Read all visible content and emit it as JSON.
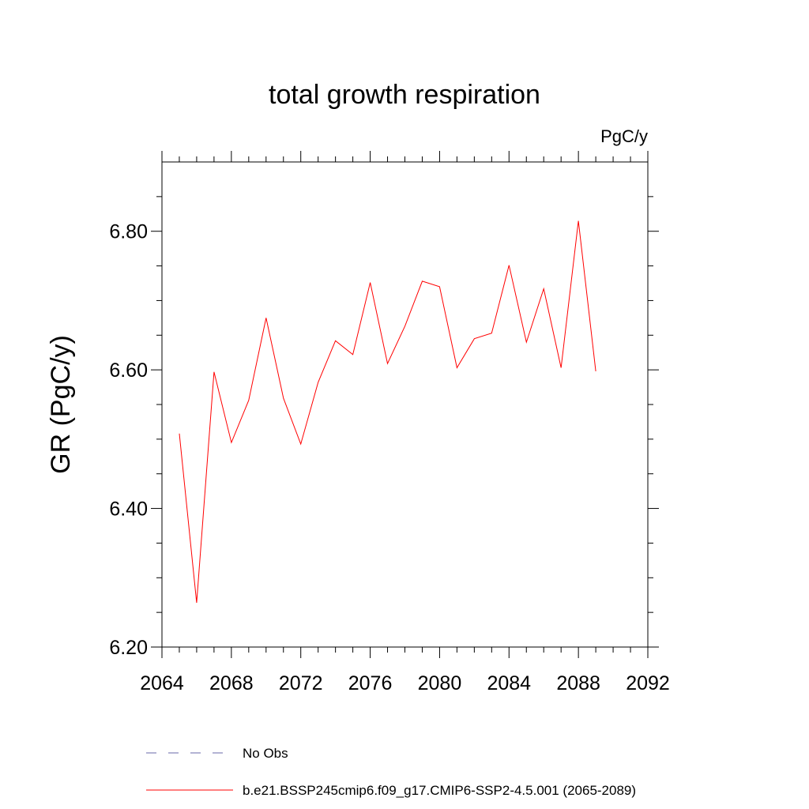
{
  "chart_data": {
    "type": "line",
    "title": "total growth respiration",
    "units_label": "PgC/y",
    "ylabel": "GR  (PgC/y)",
    "xlabel": "",
    "xlim": [
      2064,
      2092
    ],
    "ylim": [
      6.2,
      6.9
    ],
    "x_ticks": [
      "2064",
      "2068",
      "2072",
      "2076",
      "2080",
      "2084",
      "2088",
      "2092"
    ],
    "y_ticks": [
      "6.20",
      "6.40",
      "6.60",
      "6.80"
    ],
    "x_tick_values": [
      2064,
      2068,
      2072,
      2076,
      2080,
      2084,
      2088,
      2092
    ],
    "y_tick_values": [
      6.2,
      6.4,
      6.6,
      6.8
    ],
    "x_minor_step": 1,
    "y_minor_step": 0.05,
    "grid": false,
    "legend_position": "bottom",
    "series": [
      {
        "name": "b.e21.BSSP245cmip6.f09_g17.CMIP6-SSP2-4.5.001 (2065-2089)",
        "color": "#ff0000",
        "dash": "solid",
        "x": [
          2065,
          2066,
          2067,
          2068,
          2069,
          2070,
          2071,
          2072,
          2073,
          2074,
          2075,
          2076,
          2077,
          2078,
          2079,
          2080,
          2081,
          2082,
          2083,
          2084,
          2085,
          2086,
          2087,
          2088,
          2089
        ],
        "y": [
          6.508,
          6.264,
          6.597,
          6.495,
          6.556,
          6.675,
          6.559,
          6.493,
          6.582,
          6.642,
          6.622,
          6.726,
          6.609,
          6.663,
          6.728,
          6.72,
          6.603,
          6.645,
          6.653,
          6.751,
          6.64,
          6.717,
          6.603,
          6.815,
          6.598
        ]
      }
    ],
    "legend": [
      {
        "label": "No Obs",
        "color": "#6a6aa8",
        "dash": "dashed"
      },
      {
        "label": "b.e21.BSSP245cmip6.f09_g17.CMIP6-SSP2-4.5.001 (2065-2089)",
        "color": "#ff0000",
        "dash": "solid"
      }
    ]
  }
}
